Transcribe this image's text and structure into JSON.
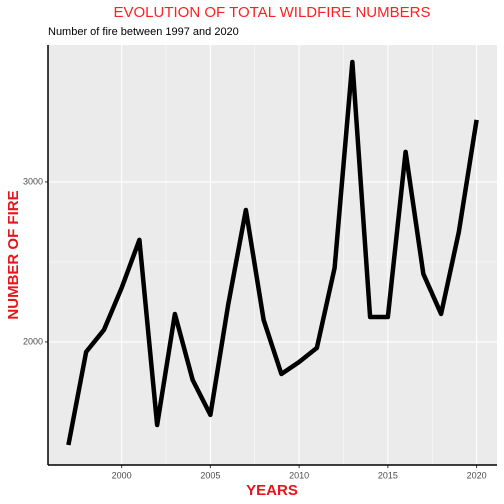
{
  "chart_data": {
    "type": "line",
    "title": "EVOLUTION OF TOTAL WILDFIRE NUMBERS",
    "subtitle": "Number of fire between 1997 and 2020",
    "x_label": "YEARS",
    "y_label": "NUMBER OF FIRE",
    "x": [
      1997,
      1998,
      1999,
      2000,
      2001,
      2002,
      2003,
      2004,
      2005,
      2006,
      2007,
      2008,
      2009,
      2010,
      2011,
      2012,
      2013,
      2014,
      2015,
      2016,
      2017,
      2018,
      2019,
      2020
    ],
    "series": [
      {
        "name": "Number of fire",
        "color": "#000000",
        "values": [
          1356,
          1938,
          2075,
          2338,
          2638,
          1481,
          2175,
          1763,
          1544,
          2231,
          2825,
          2138,
          1800,
          1875,
          1963,
          2463,
          3750,
          2156,
          2156,
          3188,
          2425,
          2175,
          2688,
          3388
        ]
      }
    ],
    "xlim": [
      1995.85,
      2021.15
    ],
    "xticks": [
      2000,
      2005,
      2010,
      2015,
      2020
    ],
    "ylim": [
      1231,
      3856
    ],
    "yticks": [
      2000,
      3000
    ],
    "grid": true
  }
}
